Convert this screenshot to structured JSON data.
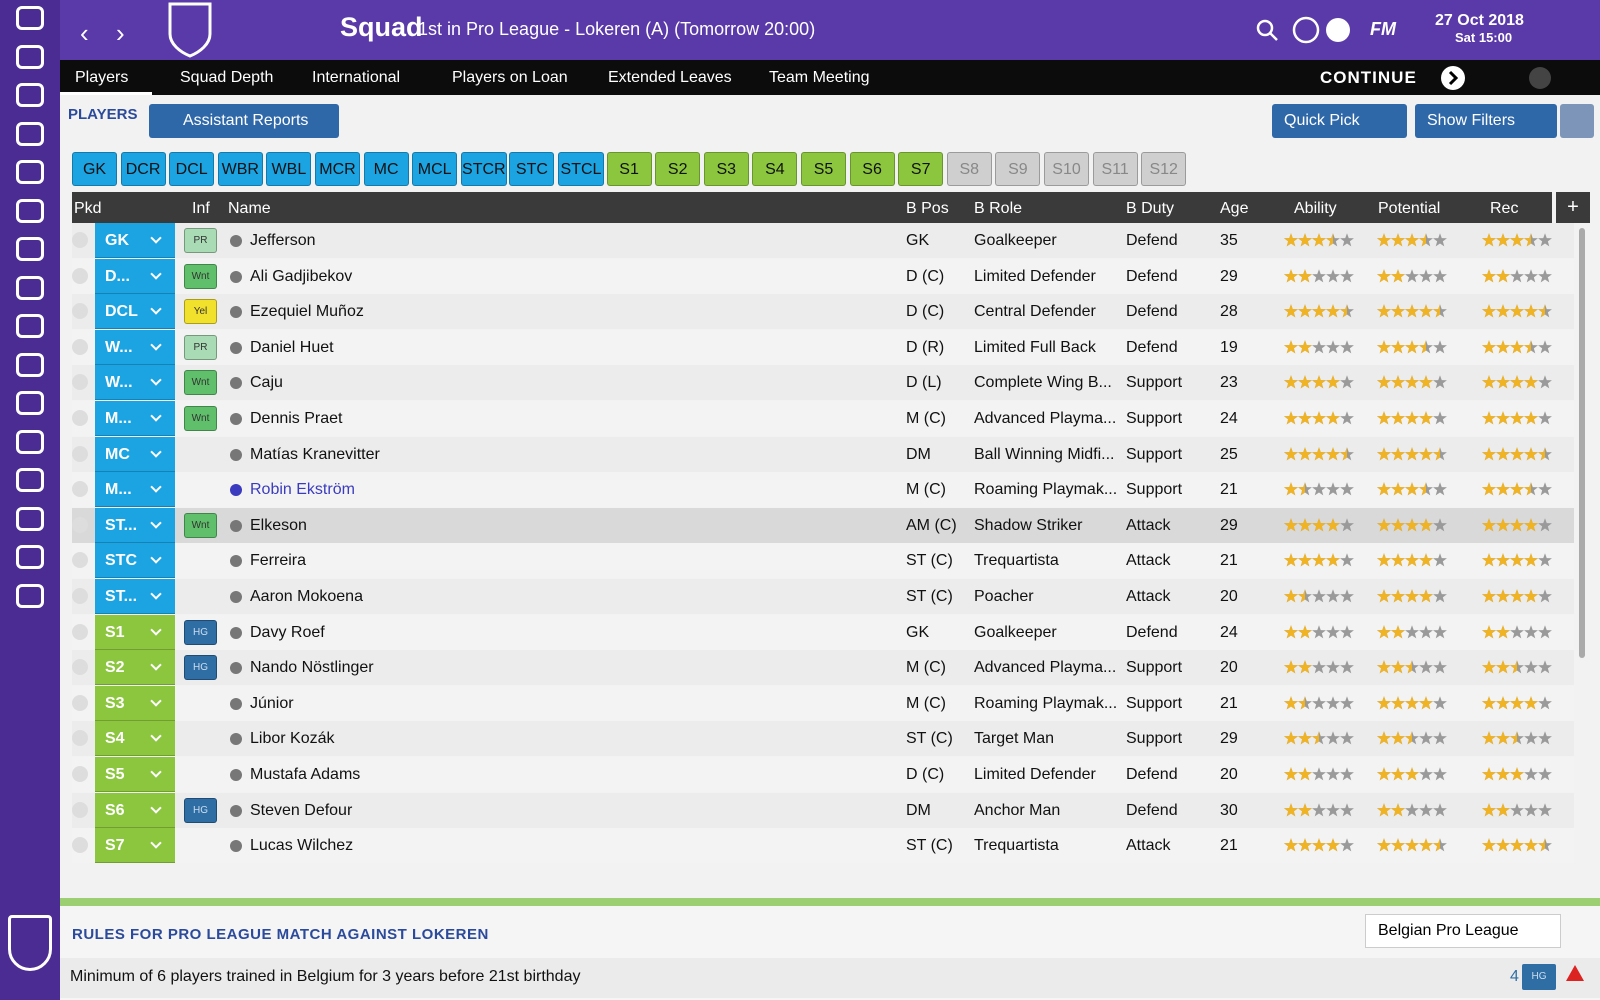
{
  "header": {
    "title": "Squad",
    "subtitle": "1st in Pro League - Lokeren (A) (Tomorrow 20:00)",
    "logo": "FM",
    "date": "27 Oct 2018",
    "time": "Sat 15:00"
  },
  "nav": {
    "tabs": [
      "Players",
      "Squad Depth",
      "International",
      "Players on Loan",
      "Extended Leaves",
      "Team Meeting"
    ],
    "continue": "CONTINUE"
  },
  "toolbar": {
    "section": "PLAYERS",
    "assistant": "Assistant Reports",
    "quick_pick": "Quick Pick",
    "filters": "Show Filters"
  },
  "position_chips": [
    {
      "label": "GK",
      "color": "#1ca3e2"
    },
    {
      "label": "DCR",
      "color": "#1ca3e2"
    },
    {
      "label": "DCL",
      "color": "#1ca3e2"
    },
    {
      "label": "WBR",
      "color": "#1ca3e2"
    },
    {
      "label": "WBL",
      "color": "#1ca3e2"
    },
    {
      "label": "MCR",
      "color": "#1ca3e2"
    },
    {
      "label": "MC",
      "color": "#1ca3e2"
    },
    {
      "label": "MCL",
      "color": "#1ca3e2"
    },
    {
      "label": "STCR",
      "color": "#1ca3e2"
    },
    {
      "label": "STC",
      "color": "#1ca3e2"
    },
    {
      "label": "STCL",
      "color": "#1ca3e2"
    },
    {
      "label": "S1",
      "color": "#8cc63e"
    },
    {
      "label": "S2",
      "color": "#8cc63e"
    },
    {
      "label": "S3",
      "color": "#8cc63e"
    },
    {
      "label": "S4",
      "color": "#8cc63e"
    },
    {
      "label": "S5",
      "color": "#8cc63e"
    },
    {
      "label": "S6",
      "color": "#8cc63e"
    },
    {
      "label": "S7",
      "color": "#8cc63e"
    },
    {
      "label": "S8",
      "color": "#cfcfcf"
    },
    {
      "label": "S9",
      "color": "#cfcfcf"
    },
    {
      "label": "S10",
      "color": "#cfcfcf"
    },
    {
      "label": "S11",
      "color": "#cfcfcf"
    },
    {
      "label": "S12",
      "color": "#cfcfcf"
    }
  ],
  "table": {
    "columns": [
      "Pkd",
      "Inf",
      "Name",
      "B Pos",
      "B Role",
      "B Duty",
      "Age",
      "Ability",
      "Potential",
      "Rec"
    ],
    "rows": [
      {
        "pos": "GK",
        "pos_color": "#1ca3e2",
        "inf": {
          "label": "PR",
          "color": "#a9dbb5"
        },
        "name": "Jefferson",
        "bpos": "GK",
        "role": "Goalkeeper",
        "duty": "Defend",
        "age": 35,
        "ability": 3.5,
        "potential": 3.5,
        "rec": 3.5
      },
      {
        "pos": "D...",
        "pos_color": "#1ca3e2",
        "inf": {
          "label": "Wnt",
          "color": "#5fbf6a"
        },
        "name": "Ali Gadjibekov",
        "bpos": "D (C)",
        "role": "Limited Defender",
        "duty": "Defend",
        "age": 29,
        "ability": 2,
        "potential": 2,
        "rec": 2
      },
      {
        "pos": "DCL",
        "pos_color": "#1ca3e2",
        "inf": {
          "label": "Yel",
          "color": "#f2e12c"
        },
        "name": "Ezequiel Muñoz",
        "bpos": "D (C)",
        "role": "Central Defender",
        "duty": "Defend",
        "age": 28,
        "ability": 4.5,
        "potential": 4.5,
        "rec": 4.5
      },
      {
        "pos": "W...",
        "pos_color": "#1ca3e2",
        "inf": {
          "label": "PR",
          "color": "#a9dbb5"
        },
        "name": "Daniel Huet",
        "bpos": "D (R)",
        "role": "Limited Full Back",
        "duty": "Defend",
        "age": 19,
        "ability": 2,
        "potential": 3.5,
        "rec": 3.5
      },
      {
        "pos": "W...",
        "pos_color": "#1ca3e2",
        "inf": {
          "label": "Wnt",
          "color": "#5fbf6a"
        },
        "name": "Caju",
        "bpos": "D (L)",
        "role": "Complete Wing B...",
        "duty": "Support",
        "age": 23,
        "ability": 4,
        "potential": 4,
        "rec": 4
      },
      {
        "pos": "M...",
        "pos_color": "#1ca3e2",
        "inf": {
          "label": "Wnt",
          "color": "#5fbf6a"
        },
        "name": "Dennis Praet",
        "bpos": "M (C)",
        "role": "Advanced Playma...",
        "duty": "Support",
        "age": 24,
        "ability": 4,
        "potential": 4,
        "rec": 4
      },
      {
        "pos": "MC",
        "pos_color": "#1ca3e2",
        "inf": null,
        "name": "Matías Kranevitter",
        "bpos": "DM",
        "role": "Ball Winning Midfi...",
        "duty": "Support",
        "age": 25,
        "ability": 4.5,
        "potential": 4.5,
        "rec": 4.5
      },
      {
        "pos": "M...",
        "pos_color": "#1ca3e2",
        "inf": null,
        "name": "Robin Ekström",
        "name_color": "#3b3bbf",
        "bpos": "M (C)",
        "role": "Roaming Playmak...",
        "duty": "Support",
        "age": 21,
        "ability": 1.5,
        "potential": 3.5,
        "rec": 3.5
      },
      {
        "pos": "ST...",
        "pos_color": "#1ca3e2",
        "inf": {
          "label": "Wnt",
          "color": "#5fbf6a"
        },
        "name": "Elkeson",
        "bpos": "AM (C)",
        "role": "Shadow Striker",
        "duty": "Attack",
        "age": 29,
        "ability": 4,
        "potential": 4,
        "rec": 4,
        "selected": true
      },
      {
        "pos": "STC",
        "pos_color": "#1ca3e2",
        "inf": null,
        "name": "Ferreira",
        "bpos": "ST (C)",
        "role": "Trequartista",
        "duty": "Attack",
        "age": 21,
        "ability": 4,
        "potential": 4,
        "rec": 4
      },
      {
        "pos": "ST...",
        "pos_color": "#1ca3e2",
        "inf": null,
        "name": "Aaron Mokoena",
        "bpos": "ST (C)",
        "role": "Poacher",
        "duty": "Attack",
        "age": 20,
        "ability": 1.5,
        "potential": 4,
        "rec": 4
      },
      {
        "pos": "S1",
        "pos_color": "#8cc63e",
        "inf": {
          "label": "HG",
          "color": "#2f6ea5"
        },
        "name": "Davy Roef",
        "bpos": "GK",
        "role": "Goalkeeper",
        "duty": "Defend",
        "age": 24,
        "ability": 2,
        "potential": 2,
        "rec": 2
      },
      {
        "pos": "S2",
        "pos_color": "#8cc63e",
        "inf": {
          "label": "HG",
          "color": "#2f6ea5"
        },
        "name": "Nando Nöstlinger",
        "bpos": "M (C)",
        "role": "Advanced Playma...",
        "duty": "Support",
        "age": 20,
        "ability": 2,
        "potential": 2.5,
        "rec": 2.5
      },
      {
        "pos": "S3",
        "pos_color": "#8cc63e",
        "inf": null,
        "name": "Júnior",
        "bpos": "M (C)",
        "role": "Roaming Playmak...",
        "duty": "Support",
        "age": 21,
        "ability": 1.5,
        "potential": 4,
        "rec": 4
      },
      {
        "pos": "S4",
        "pos_color": "#8cc63e",
        "inf": null,
        "name": "Libor Kozák",
        "bpos": "ST (C)",
        "role": "Target Man",
        "duty": "Support",
        "age": 29,
        "ability": 2.5,
        "potential": 2.5,
        "rec": 2.5
      },
      {
        "pos": "S5",
        "pos_color": "#8cc63e",
        "inf": null,
        "name": "Mustafa Adams",
        "bpos": "D (C)",
        "role": "Limited Defender",
        "duty": "Defend",
        "age": 20,
        "ability": 2,
        "potential": 3,
        "rec": 3
      },
      {
        "pos": "S6",
        "pos_color": "#8cc63e",
        "inf": {
          "label": "HG",
          "color": "#2f6ea5"
        },
        "name": "Steven Defour",
        "bpos": "DM",
        "role": "Anchor Man",
        "duty": "Defend",
        "age": 30,
        "ability": 2,
        "potential": 2,
        "rec": 2
      },
      {
        "pos": "S7",
        "pos_color": "#8cc63e",
        "inf": null,
        "name": "Lucas Wilchez",
        "bpos": "ST (C)",
        "role": "Trequartista",
        "duty": "Attack",
        "age": 21,
        "ability": 4,
        "potential": 4.5,
        "rec": 4.5
      }
    ]
  },
  "rules": {
    "title": "RULES FOR PRO LEAGUE MATCH AGAINST LOKEREN",
    "competition": "Belgian Pro League",
    "rule": "Minimum of 6 players trained in Belgium for 3 years before 21st birthday",
    "count": 4,
    "tag": "HG"
  }
}
